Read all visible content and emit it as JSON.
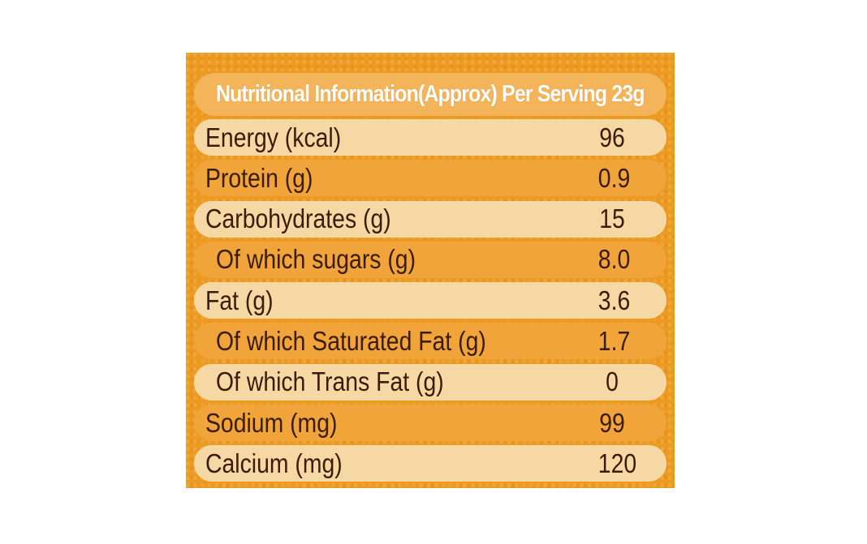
{
  "panel": {
    "title": "Nutritional Information(Approx) Per Serving 23g"
  },
  "nutrients": [
    {
      "label": "Energy (kcal)",
      "value": "96"
    },
    {
      "label": "Protein (g)",
      "value": "0.9"
    },
    {
      "label": "Carbohydrates (g)",
      "value": "15"
    },
    {
      "label": "Of which sugars (g)",
      "value": "8.0"
    },
    {
      "label": "Fat (g)",
      "value": "3.6"
    },
    {
      "label": "Of which Saturated Fat (g)",
      "value": "1.7"
    },
    {
      "label": "Of which Trans Fat (g)",
      "value": "0"
    },
    {
      "label": "Sodium (mg)",
      "value": "99"
    },
    {
      "label": "Calcium (mg)",
      "value": "120"
    }
  ],
  "colors": {
    "panel": "#ec9a22",
    "row_light": "#f6d8a4",
    "row_dark": "#f0a43a",
    "text": "#3a1c08",
    "title_text": "#ffffff"
  }
}
